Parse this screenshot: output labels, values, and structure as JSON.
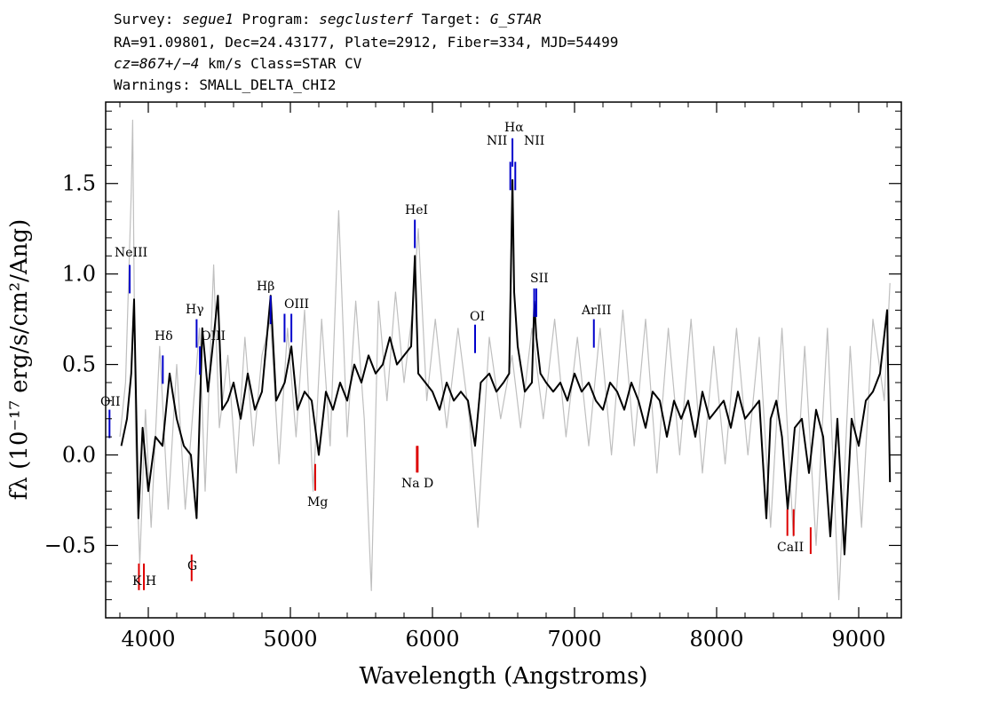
{
  "header": {
    "line1": {
      "survey_label": "Survey: ",
      "survey": "segue1",
      "program_label": " Program: ",
      "program": "segclusterf",
      "target_label": " Target: ",
      "target": "G_STAR"
    },
    "line2": "RA=91.09801, Dec=24.43177, Plate=2912, Fiber=334, MJD=54499",
    "line3": {
      "cz": "cz=867+/−4",
      "rest": " km/s Class=STAR CV"
    },
    "line4": "Warnings: SMALL_DELTA_CHI2"
  },
  "chart_data": {
    "type": "line",
    "xlabel": "Wavelength (Angstroms)",
    "ylabel": "fλ (10⁻¹⁷ erg/s/cm²/Ang)",
    "xlim": [
      3700,
      9300
    ],
    "ylim": [
      -0.9,
      1.95
    ],
    "x_ticks": [
      4000,
      5000,
      6000,
      7000,
      8000,
      9000
    ],
    "y_ticks": [
      -0.5,
      0.0,
      0.5,
      1.0,
      1.5
    ],
    "y_tick_labels": [
      "−0.5",
      "0.0",
      "0.5",
      "1.0",
      "1.5"
    ],
    "grid": false,
    "series": [
      {
        "role": "flux",
        "color": "#000000",
        "x": [
          3810,
          3850,
          3880,
          3900,
          3930,
          3960,
          4000,
          4050,
          4100,
          4150,
          4200,
          4250,
          4300,
          4340,
          4380,
          4420,
          4460,
          4490,
          4520,
          4560,
          4600,
          4650,
          4700,
          4750,
          4800,
          4861,
          4900,
          4960,
          5007,
          5050,
          5100,
          5150,
          5200,
          5250,
          5300,
          5350,
          5400,
          5450,
          5500,
          5550,
          5600,
          5650,
          5700,
          5750,
          5800,
          5850,
          5876,
          5900,
          5950,
          6000,
          6050,
          6100,
          6150,
          6200,
          6250,
          6300,
          6340,
          6400,
          6450,
          6500,
          6540,
          6563,
          6575,
          6600,
          6650,
          6700,
          6717,
          6731,
          6760,
          6800,
          6850,
          6900,
          6950,
          7000,
          7050,
          7100,
          7150,
          7200,
          7250,
          7300,
          7350,
          7400,
          7450,
          7500,
          7550,
          7600,
          7650,
          7700,
          7750,
          7800,
          7850,
          7900,
          7950,
          8000,
          8050,
          8100,
          8150,
          8200,
          8250,
          8300,
          8350,
          8380,
          8420,
          8460,
          8500,
          8550,
          8600,
          8650,
          8700,
          8750,
          8800,
          8850,
          8900,
          8950,
          9000,
          9050,
          9100,
          9150,
          9200,
          9220
        ],
        "y": [
          0.05,
          0.2,
          0.45,
          0.86,
          -0.35,
          0.15,
          -0.2,
          0.1,
          0.05,
          0.45,
          0.2,
          0.05,
          0.0,
          -0.35,
          0.7,
          0.35,
          0.65,
          0.88,
          0.25,
          0.3,
          0.4,
          0.2,
          0.45,
          0.25,
          0.35,
          0.88,
          0.3,
          0.4,
          0.6,
          0.25,
          0.35,
          0.3,
          0.0,
          0.35,
          0.25,
          0.4,
          0.3,
          0.5,
          0.4,
          0.55,
          0.45,
          0.5,
          0.65,
          0.5,
          0.55,
          0.6,
          1.1,
          0.45,
          0.4,
          0.35,
          0.25,
          0.4,
          0.3,
          0.35,
          0.3,
          0.05,
          0.4,
          0.45,
          0.35,
          0.4,
          0.45,
          1.52,
          0.9,
          0.6,
          0.35,
          0.4,
          0.85,
          0.65,
          0.45,
          0.4,
          0.35,
          0.4,
          0.3,
          0.45,
          0.35,
          0.4,
          0.3,
          0.25,
          0.4,
          0.35,
          0.25,
          0.4,
          0.3,
          0.15,
          0.35,
          0.3,
          0.1,
          0.3,
          0.2,
          0.3,
          0.1,
          0.35,
          0.2,
          0.25,
          0.3,
          0.15,
          0.35,
          0.2,
          0.25,
          0.3,
          -0.35,
          0.2,
          0.3,
          0.1,
          -0.3,
          0.15,
          0.2,
          -0.1,
          0.25,
          0.1,
          -0.45,
          0.2,
          -0.55,
          0.2,
          0.05,
          0.3,
          0.35,
          0.45,
          0.8,
          -0.15
        ]
      },
      {
        "role": "error",
        "color": "#bfbfbf",
        "x": [
          3800,
          3840,
          3880,
          3890,
          3910,
          3940,
          3980,
          4020,
          4080,
          4140,
          4200,
          4260,
          4320,
          4360,
          4400,
          4460,
          4500,
          4560,
          4620,
          4680,
          4740,
          4800,
          4860,
          4920,
          4980,
          5040,
          5100,
          5160,
          5220,
          5280,
          5340,
          5400,
          5460,
          5520,
          5570,
          5620,
          5680,
          5740,
          5800,
          5860,
          5900,
          5960,
          6020,
          6100,
          6180,
          6260,
          6320,
          6400,
          6480,
          6560,
          6620,
          6700,
          6780,
          6860,
          6940,
          7020,
          7100,
          7180,
          7260,
          7340,
          7420,
          7500,
          7580,
          7660,
          7740,
          7820,
          7900,
          7980,
          8060,
          8140,
          8220,
          8300,
          8380,
          8460,
          8540,
          8620,
          8700,
          8780,
          8860,
          8940,
          9020,
          9100,
          9180,
          9220
        ],
        "y": [
          0.1,
          0.4,
          1.45,
          1.85,
          0.1,
          -0.6,
          0.25,
          -0.4,
          0.6,
          -0.3,
          0.5,
          -0.3,
          0.3,
          0.7,
          -0.2,
          1.05,
          0.15,
          0.55,
          -0.1,
          0.65,
          0.05,
          0.55,
          0.75,
          -0.05,
          0.7,
          0.1,
          0.8,
          -0.2,
          0.75,
          0.05,
          1.35,
          0.1,
          0.85,
          0.2,
          -0.75,
          0.85,
          0.3,
          0.9,
          0.4,
          0.8,
          1.25,
          0.3,
          0.75,
          0.15,
          0.7,
          0.2,
          -0.4,
          0.65,
          0.2,
          0.55,
          0.15,
          0.7,
          0.2,
          0.75,
          0.1,
          0.65,
          0.05,
          0.7,
          0.0,
          0.8,
          0.05,
          0.75,
          -0.1,
          0.7,
          0.0,
          0.75,
          -0.1,
          0.6,
          -0.05,
          0.7,
          0.0,
          0.65,
          -0.4,
          0.7,
          -0.45,
          0.6,
          -0.5,
          0.7,
          -0.8,
          0.6,
          -0.4,
          0.75,
          0.3,
          0.95
        ]
      }
    ],
    "emission_lines": [
      {
        "label": "OII",
        "x": 3727,
        "y": 0.25
      },
      {
        "label": "NeIII",
        "x": 3869,
        "y": 1.05
      },
      {
        "label": "Hδ",
        "x": 4102,
        "y": 0.55
      },
      {
        "label": "Hγ",
        "x": 4340,
        "y": 0.75
      },
      {
        "label": "OIII",
        "x": 4363,
        "y": 0.6
      },
      {
        "label": "Hβ",
        "x": 4861,
        "y": 0.88
      },
      {
        "label": "OIII",
        "x": 4959,
        "y": 0.78
      },
      {
        "label": "OIII",
        "x": 5007,
        "y": 0.78
      },
      {
        "label": "HeI",
        "x": 5876,
        "y": 1.3
      },
      {
        "label": "OI",
        "x": 6300,
        "y": 0.72
      },
      {
        "label": "NII",
        "x": 6548,
        "y": 1.62
      },
      {
        "label": "Hα",
        "x": 6563,
        "y": 1.75
      },
      {
        "label": "NII",
        "x": 6583,
        "y": 1.62
      },
      {
        "label": "SII",
        "x": 6716,
        "y": 0.92
      },
      {
        "label": "SII",
        "x": 6731,
        "y": 0.92
      },
      {
        "label": "ArIII",
        "x": 7136,
        "y": 0.75
      }
    ],
    "absorption_lines": [
      {
        "label": "K",
        "x": 3934,
        "y": -0.6
      },
      {
        "label": "H",
        "x": 3969,
        "y": -0.6
      },
      {
        "label": "G",
        "x": 4305,
        "y": -0.55
      },
      {
        "label": "Mg",
        "x": 5175,
        "y": -0.05
      },
      {
        "label": "Na",
        "x": 5890,
        "y": 0.05
      },
      {
        "label": "D",
        "x": 5896,
        "y": 0.05
      },
      {
        "label": "CaII",
        "x": 8498,
        "y": -0.3
      },
      {
        "label": "CaII",
        "x": 8542,
        "y": -0.3
      },
      {
        "label": "CaII",
        "x": 8662,
        "y": -0.4
      }
    ],
    "line_label_text": {
      "oii": "OII",
      "neiii": "NeIII",
      "hdelta": "Hδ",
      "hgamma": "Hγ",
      "oiii_a": "OIII",
      "hbeta": "Hβ",
      "oiii_b": "OIII",
      "hei": "HeI",
      "oi": "OI",
      "nii_a": "NII",
      "halpha": "Hα",
      "nii_b": "NII",
      "sii": "SII",
      "ariii": "ArIII",
      "kh": "K H",
      "g": "G",
      "mg": "Mg",
      "nad": "Na  D",
      "caii": "CaII"
    }
  }
}
